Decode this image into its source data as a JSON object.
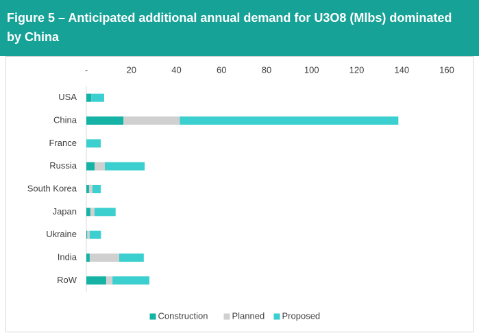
{
  "chart_data": {
    "type": "bar",
    "orientation": "horizontal",
    "stacked": true,
    "title": "Figure 5 – Anticipated additional annual demand for U3O8 (Mlbs) dominated by China",
    "categories": [
      "USA",
      "China",
      "France",
      "Russia",
      "South Korea",
      "Japan",
      "Ukraine",
      "India",
      "RoW"
    ],
    "series": [
      {
        "name": "Construction",
        "color": "#14b3a6",
        "values": [
          2.2,
          16.5,
          0,
          3.7,
          1.2,
          1.8,
          0.4,
          1.5,
          8.8
        ]
      },
      {
        "name": "Planned",
        "color": "#d0d0d0",
        "values": [
          0,
          25,
          0,
          4.5,
          1.5,
          1.8,
          1.1,
          13.1,
          2.8
        ]
      },
      {
        "name": "Proposed",
        "color": "#3ccfcf",
        "values": [
          5.7,
          97,
          6.4,
          17.7,
          3.7,
          9.4,
          5,
          10.9,
          16.4
        ]
      }
    ],
    "xlim": [
      0,
      160
    ],
    "xticks": [
      {
        "value": 0,
        "label": "-"
      },
      20,
      40,
      60,
      80,
      100,
      120,
      140,
      160
    ],
    "legend": "bottom",
    "grid": false
  }
}
